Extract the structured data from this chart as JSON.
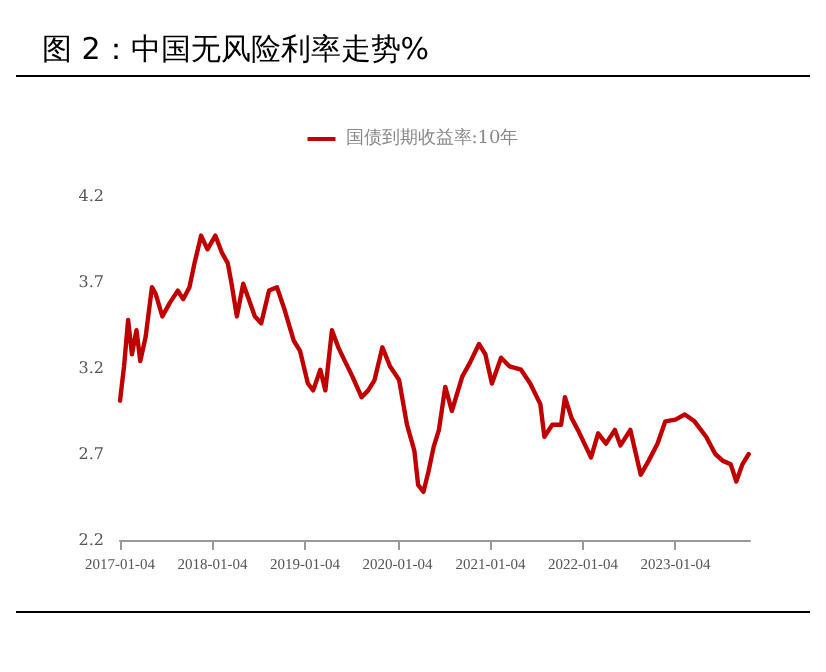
{
  "chart_data": {
    "type": "line",
    "title": "图 2：中国无风险利率走势%",
    "legend": "top",
    "grid": false,
    "marker": "none",
    "line_style": "solid",
    "xlim": [
      "2017-01-04",
      "2023-10-25"
    ],
    "xticks": [
      "2017-01-04",
      "2018-01-04",
      "2019-01-04",
      "2020-01-04",
      "2021-01-04",
      "2022-01-04",
      "2023-01-04"
    ],
    "ylim": [
      2.2,
      4.2
    ],
    "yticks": [
      2.2,
      2.7,
      3.2,
      3.7,
      4.2
    ],
    "x": [
      "2017-01-04",
      "2017-01-20",
      "2017-02-05",
      "2017-02-20",
      "2017-03-10",
      "2017-03-25",
      "2017-04-15",
      "2017-05-10",
      "2017-05-25",
      "2017-06-20",
      "2017-07-20",
      "2017-08-20",
      "2017-09-10",
      "2017-10-05",
      "2017-10-25",
      "2017-11-20",
      "2017-12-15",
      "2018-01-15",
      "2018-02-10",
      "2018-03-05",
      "2018-03-20",
      "2018-04-10",
      "2018-05-05",
      "2018-06-20",
      "2018-07-15",
      "2018-08-15",
      "2018-09-15",
      "2018-10-15",
      "2018-11-20",
      "2018-12-15",
      "2019-01-15",
      "2019-02-05",
      "2019-03-05",
      "2019-03-25",
      "2019-04-20",
      "2019-05-15",
      "2019-06-10",
      "2019-07-10",
      "2019-08-15",
      "2019-09-10",
      "2019-10-05",
      "2019-11-05",
      "2019-12-05",
      "2020-01-10",
      "2020-02-10",
      "2020-03-10",
      "2020-03-25",
      "2020-04-15",
      "2020-05-05",
      "2020-05-25",
      "2020-06-15",
      "2020-07-10",
      "2020-08-05",
      "2020-09-15",
      "2020-10-15",
      "2020-11-20",
      "2020-12-15",
      "2021-01-10",
      "2021-02-15",
      "2021-03-20",
      "2021-05-05",
      "2021-06-10",
      "2021-07-20",
      "2021-08-05",
      "2021-09-05",
      "2021-10-10",
      "2021-10-25",
      "2021-11-20",
      "2021-12-15",
      "2022-02-05",
      "2022-03-05",
      "2022-04-05",
      "2022-05-10",
      "2022-06-01",
      "2022-07-10",
      "2022-08-20",
      "2022-09-20",
      "2022-10-25",
      "2022-11-25",
      "2023-01-04",
      "2023-02-10",
      "2023-03-20",
      "2023-05-05",
      "2023-06-10",
      "2023-07-10",
      "2023-08-10",
      "2023-09-01",
      "2023-09-25",
      "2023-10-20"
    ],
    "series": [
      {
        "name": "国债到期收益率:10年",
        "color": "#c00000",
        "values": [
          3.01,
          3.21,
          3.48,
          3.28,
          3.42,
          3.24,
          3.38,
          3.67,
          3.63,
          3.5,
          3.58,
          3.65,
          3.6,
          3.67,
          3.81,
          3.97,
          3.89,
          3.97,
          3.87,
          3.81,
          3.69,
          3.5,
          3.69,
          3.5,
          3.46,
          3.65,
          3.67,
          3.54,
          3.36,
          3.3,
          3.11,
          3.07,
          3.19,
          3.07,
          3.42,
          3.32,
          3.24,
          3.15,
          3.03,
          3.07,
          3.13,
          3.32,
          3.21,
          3.13,
          2.87,
          2.72,
          2.52,
          2.48,
          2.6,
          2.74,
          2.84,
          3.09,
          2.95,
          3.15,
          3.23,
          3.34,
          3.28,
          3.11,
          3.26,
          3.21,
          3.19,
          3.11,
          2.99,
          2.8,
          2.87,
          2.87,
          3.03,
          2.91,
          2.84,
          2.68,
          2.82,
          2.76,
          2.84,
          2.75,
          2.84,
          2.58,
          2.66,
          2.76,
          2.89,
          2.9,
          2.93,
          2.89,
          2.8,
          2.7,
          2.66,
          2.64,
          2.54,
          2.64,
          2.7
        ]
      }
    ]
  }
}
